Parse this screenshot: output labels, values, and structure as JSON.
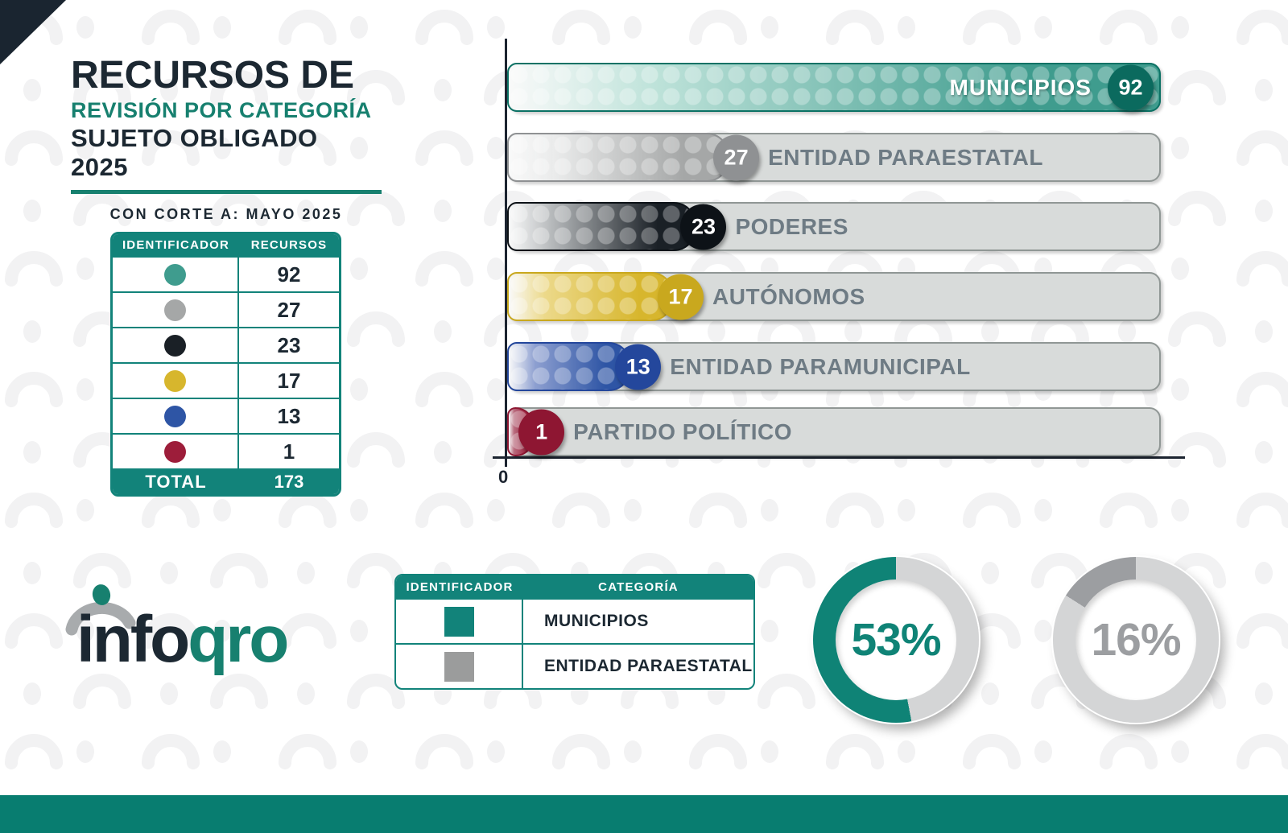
{
  "title": {
    "line1": "RECURSOS DE",
    "line2": "REVISIÓN POR CATEGORÍA",
    "line3": "SUJETO OBLIGADO 2025",
    "subtitle": "CON CORTE A: MAYO 2025"
  },
  "summary_table": {
    "headers": [
      "IDENTIFICADOR",
      "RECURSOS"
    ],
    "total_label": "TOTAL",
    "total_value": "173"
  },
  "chart_data": [
    {
      "type": "bar",
      "orientation": "horizontal",
      "title": "Recursos de revisión por categoría sujeto obligado 2025",
      "categories": [
        "MUNICIPIOS",
        "ENTIDAD PARAESTATAL",
        "PODERES",
        "AUTÓNOMOS",
        "ENTIDAD PARAMUNICIPAL",
        "PARTIDO POLÍTICO"
      ],
      "values": [
        92,
        27,
        23,
        17,
        13,
        1
      ],
      "xlim": [
        0,
        92
      ],
      "x_origin_label": "0",
      "grid": false,
      "legend_position": "none",
      "bar_styles": [
        {
          "light": "#bfe3da",
          "base": "#3f9c8e",
          "dark": "#0c7265",
          "badge": "#0b6a5e",
          "fill_pct": 100,
          "label_inside": true
        },
        {
          "light": "#e9eaea",
          "base": "#a5a7a7",
          "dark": "#8f9193",
          "badge": "#8f9193",
          "fill_pct": 34,
          "label_inside": false
        },
        {
          "light": "#b9bcbe",
          "base": "#1a2026",
          "dark": "#0d1217",
          "badge": "#0d1217",
          "fill_pct": 29,
          "label_inside": false
        },
        {
          "light": "#ecd98a",
          "base": "#d7b62d",
          "dark": "#c9a81e",
          "badge": "#c9a81e",
          "fill_pct": 25.5,
          "label_inside": false
        },
        {
          "light": "#8d9fd0",
          "base": "#2e55a5",
          "dark": "#24479c",
          "badge": "#24479c",
          "fill_pct": 19,
          "label_inside": false
        },
        {
          "light": "#b86a7d",
          "base": "#9d1d3a",
          "dark": "#8e1632",
          "badge": "#8e1632",
          "fill_pct": 4.2,
          "label_inside": false
        }
      ]
    },
    {
      "type": "donut",
      "label": "53%",
      "percent": 53,
      "arc_color": "#0f8376",
      "track_color": "#d4d5d6",
      "text_color": "#0f8376"
    },
    {
      "type": "donut",
      "label": "16%",
      "percent": 16,
      "arc_color": "#9c9ea1",
      "track_color": "#d4d5d6",
      "text_color": "#9c9ea1"
    }
  ],
  "category_table": {
    "headers": [
      "IDENTIFICADOR",
      "CATEGORÍA"
    ],
    "rows": [
      {
        "color": "#12837a",
        "label": "MUNICIPIOS"
      },
      {
        "color": "#9b9c9c",
        "label": "ENTIDAD PARAESTATAL"
      }
    ]
  },
  "logo": {
    "text_dark": "info",
    "text_teal": "qro"
  },
  "colors": {
    "teal": "#12837a",
    "navy": "#1c2832",
    "track_gray": "#d8dbda",
    "label_gray": "#6e7b84",
    "bottom_strip": "#087d70"
  }
}
